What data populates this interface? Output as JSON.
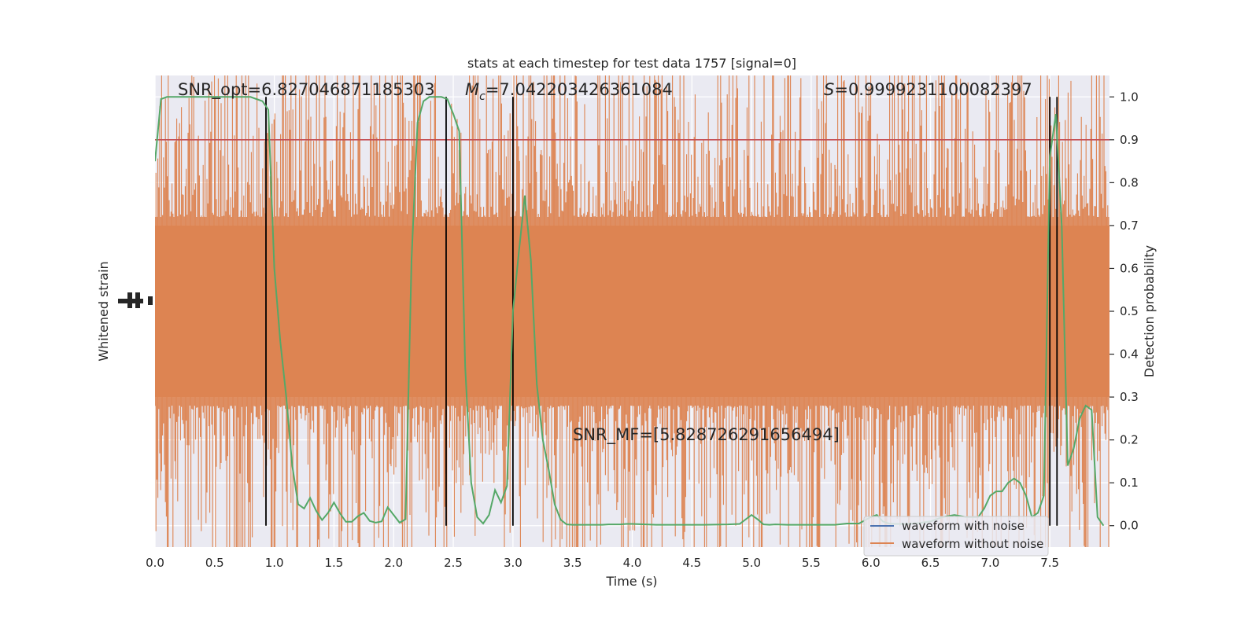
{
  "chart_data": {
    "type": "line",
    "title": "stats at each timestep for test data 1757 [signal=0]",
    "xlabel": "Time (s)",
    "ylabel_left": "Whitened strain",
    "ylabel_right": "Detection probability",
    "xlim": [
      0,
      8
    ],
    "ylim_right": [
      -0.05,
      1.05
    ],
    "x_ticks": [
      "0.0",
      "0.5",
      "1.0",
      "1.5",
      "2.0",
      "2.5",
      "3.0",
      "3.5",
      "4.0",
      "4.5",
      "5.0",
      "5.5",
      "6.0",
      "6.5",
      "7.0",
      "7.5"
    ],
    "x_tick_values": [
      0,
      0.5,
      1,
      1.5,
      2,
      2.5,
      3,
      3.5,
      4,
      4.5,
      5,
      5.5,
      6,
      6.5,
      7,
      7.5
    ],
    "y_right_ticks": [
      "0.0",
      "0.1",
      "0.2",
      "0.3",
      "0.4",
      "0.5",
      "0.6",
      "0.7",
      "0.8",
      "0.9",
      "1.0"
    ],
    "y_right_tick_values": [
      0,
      0.1,
      0.2,
      0.3,
      0.4,
      0.5,
      0.6,
      0.7,
      0.8,
      0.9,
      1.0
    ],
    "grid": true,
    "legend_position": "bottom-right",
    "legend": [
      {
        "name": "waveform with noise",
        "color": "#4c72b0"
      },
      {
        "name": "waveform without noise",
        "color": "#dd8452"
      }
    ],
    "annotations": {
      "snr_opt": "SNR_opt=6.827046871185303",
      "mc_symbol": "M",
      "mc_sub": "c",
      "mc_value": "=7.042203426361084",
      "s_symbol": "S",
      "s_value": "=0.9999231100082397",
      "snr_mf": "SNR_MF=[5.828726291656494]"
    },
    "threshold": {
      "value": 0.9,
      "color": "#c44e52"
    },
    "vertical_lines": [
      0.93,
      2.44,
      3.0,
      7.5,
      7.56
    ],
    "probability_series": {
      "name": "Detection probability",
      "color": "#55a868",
      "x": [
        0.0,
        0.05,
        0.1,
        0.15,
        0.2,
        0.25,
        0.3,
        0.35,
        0.4,
        0.45,
        0.5,
        0.55,
        0.6,
        0.65,
        0.7,
        0.75,
        0.8,
        0.85,
        0.9,
        0.95,
        1.0,
        1.05,
        1.1,
        1.15,
        1.2,
        1.25,
        1.3,
        1.35,
        1.4,
        1.45,
        1.5,
        1.55,
        1.6,
        1.65,
        1.7,
        1.75,
        1.8,
        1.85,
        1.9,
        1.95,
        2.0,
        2.05,
        2.1,
        2.15,
        2.2,
        2.25,
        2.3,
        2.35,
        2.4,
        2.45,
        2.5,
        2.55,
        2.6,
        2.65,
        2.7,
        2.75,
        2.8,
        2.85,
        2.9,
        2.95,
        3.0,
        3.05,
        3.1,
        3.15,
        3.2,
        3.25,
        3.3,
        3.35,
        3.4,
        3.45,
        3.5,
        3.55,
        3.6,
        3.65,
        3.7,
        3.75,
        3.8,
        3.85,
        3.9,
        3.95,
        4.0,
        4.2,
        4.4,
        4.6,
        4.8,
        4.9,
        5.0,
        5.05,
        5.1,
        5.15,
        5.2,
        5.3,
        5.4,
        5.5,
        5.6,
        5.7,
        5.8,
        5.9,
        6.0,
        6.05,
        6.1,
        6.15,
        6.2,
        6.3,
        6.4,
        6.5,
        6.6,
        6.7,
        6.8,
        6.9,
        6.95,
        7.0,
        7.05,
        7.1,
        7.15,
        7.2,
        7.25,
        7.3,
        7.35,
        7.4,
        7.45,
        7.5,
        7.55,
        7.6,
        7.65,
        7.7,
        7.75,
        7.8,
        7.85,
        7.9,
        7.95
      ],
      "y": [
        0.85,
        0.995,
        1.0,
        1.0,
        1.0,
        1.0,
        1.0,
        1.0,
        1.0,
        1.0,
        1.0,
        1.0,
        1.0,
        1.0,
        1.0,
        1.0,
        1.0,
        0.995,
        0.99,
        0.97,
        0.6,
        0.43,
        0.3,
        0.14,
        0.05,
        0.04,
        0.065,
        0.035,
        0.013,
        0.03,
        0.054,
        0.029,
        0.009,
        0.009,
        0.022,
        0.03,
        0.011,
        0.007,
        0.01,
        0.043,
        0.025,
        0.007,
        0.015,
        0.62,
        0.94,
        0.99,
        1.0,
        1.0,
        1.0,
        0.995,
        0.96,
        0.92,
        0.37,
        0.1,
        0.02,
        0.005,
        0.025,
        0.083,
        0.054,
        0.093,
        0.5,
        0.64,
        0.77,
        0.62,
        0.33,
        0.2,
        0.13,
        0.05,
        0.014,
        0.003,
        0.002,
        0.002,
        0.002,
        0.002,
        0.002,
        0.002,
        0.003,
        0.003,
        0.003,
        0.004,
        0.004,
        0.002,
        0.002,
        0.002,
        0.003,
        0.004,
        0.025,
        0.015,
        0.003,
        0.002,
        0.003,
        0.002,
        0.002,
        0.002,
        0.002,
        0.002,
        0.005,
        0.005,
        0.02,
        0.025,
        0.01,
        0.005,
        0.004,
        0.004,
        0.006,
        0.01,
        0.02,
        0.025,
        0.02,
        0.02,
        0.04,
        0.07,
        0.08,
        0.08,
        0.1,
        0.11,
        0.1,
        0.07,
        0.02,
        0.03,
        0.07,
        0.86,
        0.96,
        0.7,
        0.14,
        0.18,
        0.25,
        0.28,
        0.27,
        0.02,
        0.0
      ]
    }
  }
}
